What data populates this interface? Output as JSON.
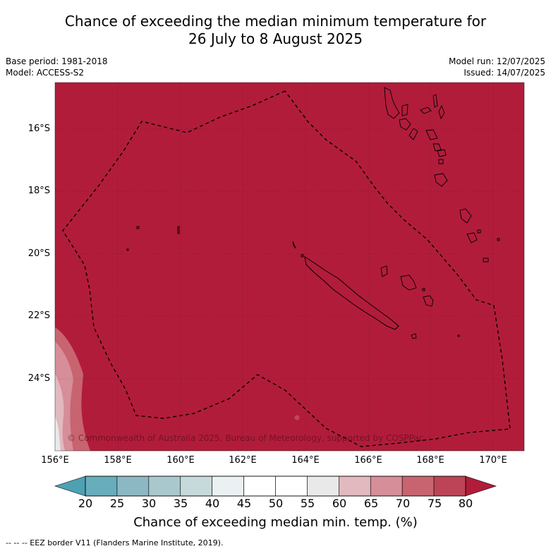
{
  "title": {
    "line1": "Chance of exceeding the median minimum temperature for",
    "line2": "26 July to 8 August 2025"
  },
  "meta": {
    "base_period": "Base period: 1981-2018",
    "model": "Model: ACCESS-S2",
    "model_run": "Model run: 12/07/2025",
    "issued": "Issued: 14/07/2025"
  },
  "axes": {
    "latitude_labels": [
      "16°S",
      "18°S",
      "20°S",
      "22°S",
      "24°S"
    ],
    "longitude_labels": [
      "156°E",
      "158°E",
      "160°E",
      "162°E",
      "164°E",
      "166°E",
      "168°E",
      "170°E"
    ],
    "lat_range": [
      -26.8,
      -15.5
    ],
    "lon_range": [
      156,
      171
    ],
    "gridlines": true
  },
  "colorbar": {
    "ticks": [
      "20",
      "25",
      "30",
      "35",
      "40",
      "45",
      "50",
      "55",
      "60",
      "65",
      "70",
      "75",
      "80"
    ],
    "colors": [
      "#68adbb",
      "#8cb8c4",
      "#a9c8cd",
      "#c6d9db",
      "#ebf1f3",
      "#ffffff",
      "#ffffff",
      "#e9e9e9",
      "#e1b9bf",
      "#d68e98",
      "#c8646f",
      "#bd4457"
    ],
    "under_color": "#4ea1b3",
    "over_color": "#b21c3b",
    "label": "Chance of exceeding median min. temp. (%)"
  },
  "map": {
    "background_color": "#b21c3b",
    "gradient_colors": [
      "#c8646f",
      "#d68e98",
      "#e1b9bf",
      "#e9e9e9"
    ]
  },
  "copyright": "© Commonwealth of Australia 2025, Bureau of Meteorology, supported by COSPPac",
  "footnote": "--  --  -- EEZ border V11 (Flanders Marine Institute, 2019)."
}
